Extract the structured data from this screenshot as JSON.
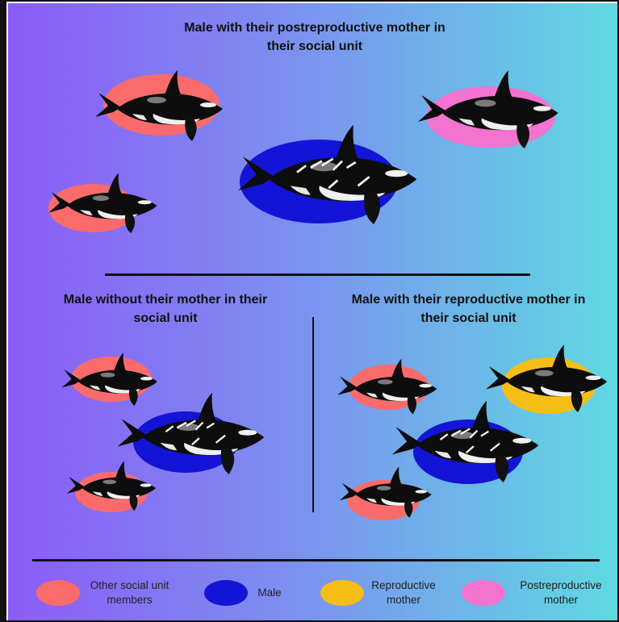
{
  "sections": {
    "top_title": "Male with their postreproductive mother in their social unit",
    "left_title": "Male without their mother in their social unit",
    "right_title": "Male with their reproductive mother in their social unit"
  },
  "legend": {
    "items": [
      {
        "label": "Other social unit members",
        "color": "#fb6b6b"
      },
      {
        "label": "Male",
        "color": "#1414d6"
      },
      {
        "label": "Reproductive mother",
        "color": "#f5bd16"
      },
      {
        "label": "Postreproductive mother",
        "color": "#f472d0"
      }
    ]
  },
  "colors": {
    "other": "#fb6b6b",
    "male": "#1414d6",
    "reproductive": "#f5bd16",
    "postreproductive": "#f472d0",
    "background_start": "#8b5cf6",
    "background_end": "#5fd9e2"
  }
}
